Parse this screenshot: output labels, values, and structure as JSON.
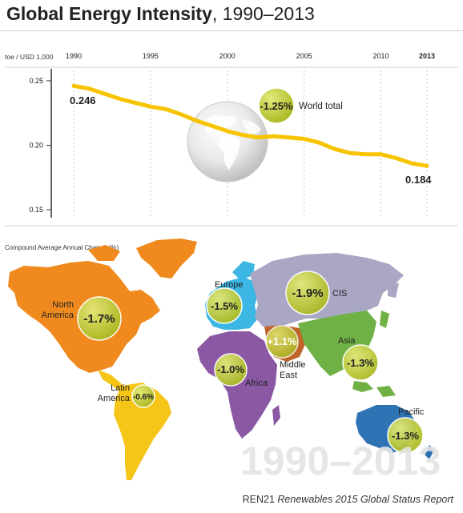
{
  "title_bold": "Global Energy Intensity",
  "title_rest": ", 1990–2013",
  "chart_data": {
    "type": "line",
    "title": "Global Energy Intensity, 1990–2013",
    "ylabel": "toe / USD 1,000",
    "xlim": [
      1990,
      2013
    ],
    "ylim": [
      0.15,
      0.25
    ],
    "x_ticks": [
      "1990",
      "1995",
      "2000",
      "2005",
      "2010",
      "2013"
    ],
    "y_ticks": [
      "0.25",
      "0.20",
      "0.15"
    ],
    "series": [
      {
        "x": [
          1990,
          1991,
          1992,
          1993,
          1994,
          1995,
          1996,
          1997,
          1998,
          1999,
          2000,
          2001,
          2002,
          2003,
          2004,
          2005,
          2006,
          2007,
          2008,
          2009,
          2010,
          2011,
          2012,
          2013
        ],
        "values": [
          0.246,
          0.244,
          0.24,
          0.236,
          0.233,
          0.23,
          0.228,
          0.224,
          0.219,
          0.215,
          0.211,
          0.208,
          0.206,
          0.207,
          0.206,
          0.205,
          0.202,
          0.197,
          0.194,
          0.193,
          0.193,
          0.19,
          0.186,
          0.184
        ]
      }
    ],
    "start_label": "0.246",
    "end_label": "0.184",
    "world_total": {
      "value": "-1.25%",
      "label": "World total"
    },
    "colors": {
      "line": "#f6c400",
      "badge": "#b8c432"
    }
  },
  "map": {
    "caption": "Compound Average Annual Change (%)",
    "watermark": "1990–2013",
    "regions": [
      {
        "id": "north-america",
        "label_lines": [
          "North",
          "America"
        ],
        "value": "-1.7%",
        "color": "#f08a1e"
      },
      {
        "id": "latin-america",
        "label_lines": [
          "Latin",
          "America"
        ],
        "value": "-0.6%",
        "color": "#f5c518"
      },
      {
        "id": "europe",
        "label_lines": [
          "Europe"
        ],
        "value": "-1.5%",
        "color": "#3cb7e4"
      },
      {
        "id": "cis",
        "label_lines": [
          "CIS"
        ],
        "value": "-1.9%",
        "color": "#a9a7c4"
      },
      {
        "id": "africa",
        "label_lines": [
          "Africa"
        ],
        "value": "-1.0%",
        "color": "#8b59a4"
      },
      {
        "id": "middle-east",
        "label_lines": [
          "Middle",
          "East"
        ],
        "value": "+1.1%",
        "color": "#c0652a"
      },
      {
        "id": "asia",
        "label_lines": [
          "Asia"
        ],
        "value": "-1.3%",
        "color": "#6fb144"
      },
      {
        "id": "pacific",
        "label_lines": [
          "Pacific"
        ],
        "value": "-1.3%",
        "color": "#2e74b5"
      }
    ]
  },
  "footer": {
    "org": "REN21",
    "report": "Renewables 2015 Global Status Report"
  }
}
